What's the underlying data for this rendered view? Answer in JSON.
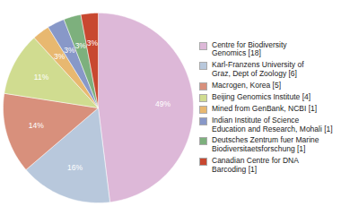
{
  "chart_data": {
    "type": "pie",
    "categories": [
      "Centre for Biodiversity\nGenomics [18]",
      "Karl-Franzens University of\nGraz, Dept of Zoology [6]",
      "Macrogen, Korea [5]",
      "Beijing Genomics Institute [4]",
      "Mined from GenBank, NCBI [1]",
      "Indian Institute of Science\nEducation and Research, Mohali [1]",
      "Deutsches Zentrum fuer Marine\nBiodiversitaetsforschung [1]",
      "Canadian Centre for DNA\nBarcoding [1]"
    ],
    "values": [
      49,
      16,
      14,
      11,
      3,
      3,
      3,
      3
    ],
    "value_labels": [
      "49%",
      "16%",
      "14%",
      "11%",
      "3%",
      "3%",
      "3%",
      "3%"
    ],
    "colors": [
      "#ddb8d8",
      "#b8c8dc",
      "#d8907c",
      "#d0dc90",
      "#e8b870",
      "#8898c8",
      "#7db07d",
      "#c84830"
    ],
    "data_labels": true,
    "legend": "right"
  }
}
